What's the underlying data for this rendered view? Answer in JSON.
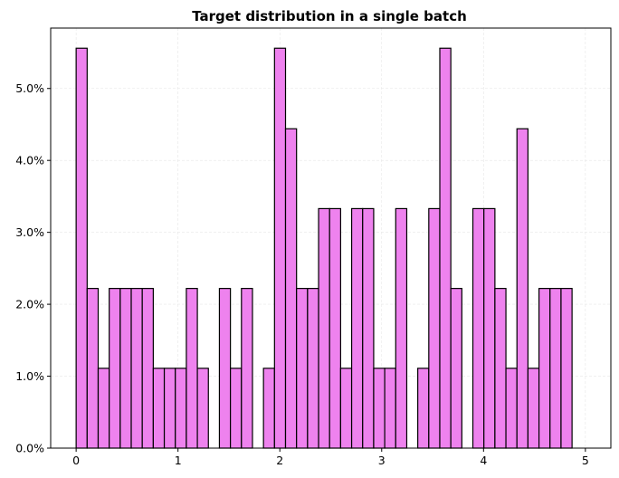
{
  "chart_data": {
    "type": "bar",
    "title": "Target distribution in a single batch",
    "xlabel": "",
    "ylabel": "",
    "bin_start": 0.0,
    "bin_width": 0.1082,
    "values": [
      5.56,
      2.22,
      1.11,
      2.22,
      2.22,
      2.22,
      2.22,
      1.11,
      1.11,
      1.11,
      2.22,
      1.11,
      0,
      2.22,
      1.11,
      2.22,
      0,
      1.11,
      5.56,
      4.44,
      2.22,
      2.22,
      3.33,
      3.33,
      1.11,
      3.33,
      3.33,
      1.11,
      1.11,
      3.33,
      0,
      1.11,
      3.33,
      5.56,
      2.22,
      0,
      3.33,
      3.33,
      2.22,
      1.11,
      4.44,
      1.11,
      2.22,
      2.22,
      2.22
    ],
    "xlim": [
      -0.25,
      5.25
    ],
    "ylim": [
      0,
      5.84
    ],
    "xticks": [
      0,
      1,
      2,
      3,
      4,
      5
    ],
    "xtick_labels": [
      "0",
      "1",
      "2",
      "3",
      "4",
      "5"
    ],
    "yticks": [
      0,
      1,
      2,
      3,
      4,
      5
    ],
    "ytick_labels": [
      "0.0%",
      "1.0%",
      "2.0%",
      "3.0%",
      "4.0%",
      "5.0%"
    ],
    "grid": true,
    "legend": "none",
    "colors": {
      "bar_fill": "#EE82EE",
      "bar_edge": "#000000"
    }
  }
}
